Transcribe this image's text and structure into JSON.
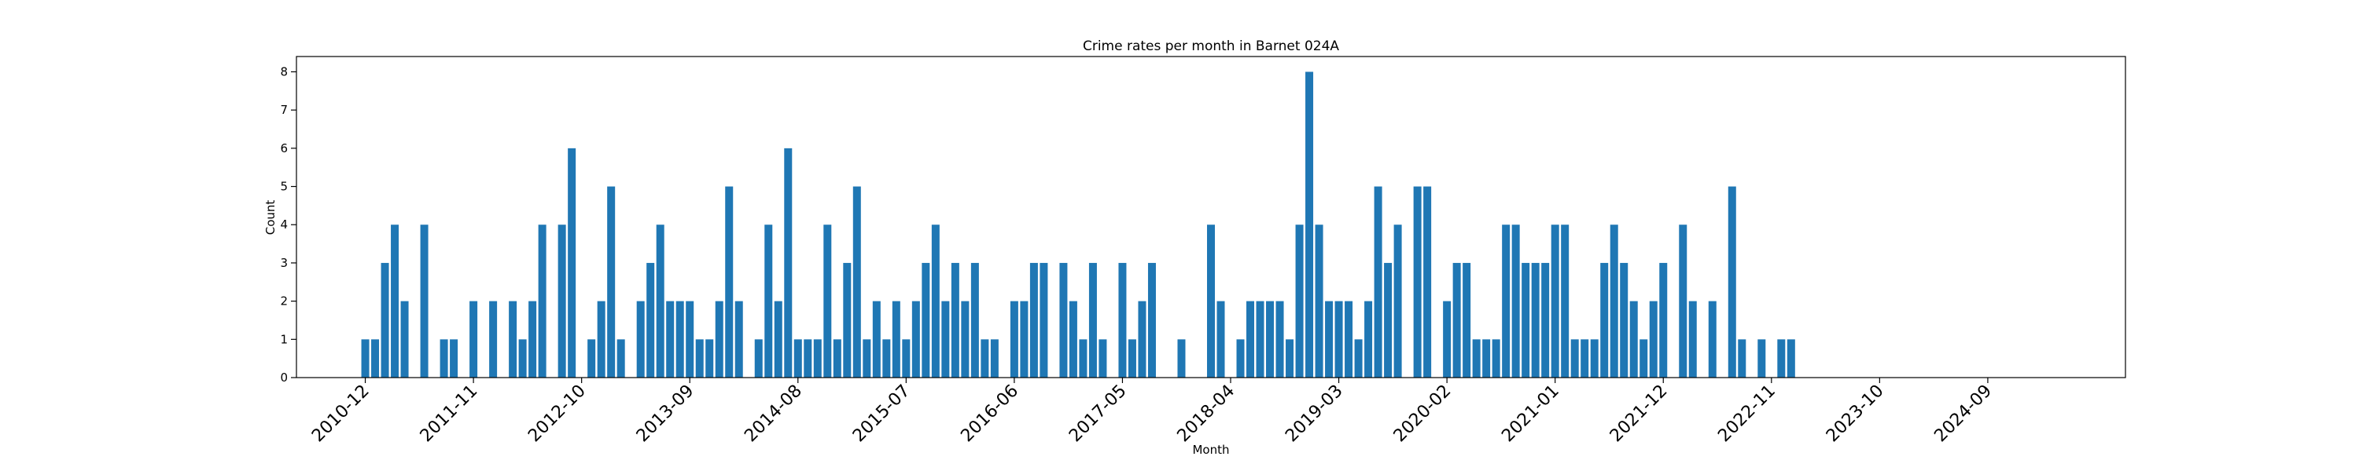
{
  "chart_data": {
    "type": "bar",
    "title": "Crime rates per month in Barnet 024A",
    "xlabel": "Month",
    "ylabel": "Count",
    "ylim": [
      0,
      8.4
    ],
    "yticks": [
      0,
      1,
      2,
      3,
      4,
      5,
      6,
      7,
      8
    ],
    "xlim": [
      "2010-05",
      "2025-11"
    ],
    "xticks": [
      "2010-12",
      "2011-11",
      "2012-10",
      "2013-09",
      "2014-08",
      "2015-07",
      "2016-06",
      "2017-05",
      "2018-04",
      "2019-03",
      "2020-02",
      "2021-01",
      "2021-12",
      "2022-11",
      "2023-10",
      "2024-09"
    ],
    "bar_color": "#1f77b4",
    "grid": false,
    "x": [
      "2010-12",
      "2011-01",
      "2011-02",
      "2011-03",
      "2011-04",
      "2011-06",
      "2011-08",
      "2011-09",
      "2011-11",
      "2012-01",
      "2012-03",
      "2012-04",
      "2012-05",
      "2012-06",
      "2012-08",
      "2012-09",
      "2012-11",
      "2012-12",
      "2013-01",
      "2013-02",
      "2013-04",
      "2013-05",
      "2013-06",
      "2013-07",
      "2013-08",
      "2013-09",
      "2013-10",
      "2013-11",
      "2013-12",
      "2014-01",
      "2014-02",
      "2014-04",
      "2014-05",
      "2014-06",
      "2014-07",
      "2014-08",
      "2014-09",
      "2014-10",
      "2014-11",
      "2014-12",
      "2015-01",
      "2015-02",
      "2015-03",
      "2015-04",
      "2015-05",
      "2015-06",
      "2015-07",
      "2015-08",
      "2015-09",
      "2015-10",
      "2015-11",
      "2015-12",
      "2016-01",
      "2016-02",
      "2016-03",
      "2016-04",
      "2016-06",
      "2016-07",
      "2016-08",
      "2016-09",
      "2016-11",
      "2016-12",
      "2017-01",
      "2017-02",
      "2017-03",
      "2017-05",
      "2017-06",
      "2017-07",
      "2017-08",
      "2017-11",
      "2018-02",
      "2018-03",
      "2018-05",
      "2018-06",
      "2018-07",
      "2018-08",
      "2018-09",
      "2018-10",
      "2018-11",
      "2018-12",
      "2019-01",
      "2019-02",
      "2019-03",
      "2019-04",
      "2019-05",
      "2019-06",
      "2019-07",
      "2019-08",
      "2019-09",
      "2019-11",
      "2019-12",
      "2020-02",
      "2020-03",
      "2020-04",
      "2020-05",
      "2020-06",
      "2020-07",
      "2020-08",
      "2020-09",
      "2020-10",
      "2020-11",
      "2020-12",
      "2021-01",
      "2021-02",
      "2021-03",
      "2021-04",
      "2021-05",
      "2021-06",
      "2021-07",
      "2021-08",
      "2021-09",
      "2021-10",
      "2021-11",
      "2021-12",
      "2022-02",
      "2022-03",
      "2022-05",
      "2022-07",
      "2022-08",
      "2022-10",
      "2022-12",
      "2023-01"
    ],
    "values": [
      1,
      1,
      3,
      4,
      2,
      4,
      1,
      1,
      2,
      2,
      2,
      1,
      2,
      4,
      4,
      6,
      1,
      2,
      5,
      1,
      2,
      3,
      4,
      2,
      2,
      2,
      1,
      1,
      2,
      5,
      2,
      1,
      4,
      2,
      6,
      1,
      1,
      1,
      4,
      1,
      3,
      5,
      1,
      2,
      1,
      2,
      1,
      2,
      3,
      4,
      2,
      3,
      2,
      3,
      1,
      1,
      2,
      2,
      3,
      3,
      3,
      2,
      1,
      3,
      1,
      3,
      1,
      2,
      3,
      1,
      4,
      2,
      1,
      2,
      2,
      2,
      2,
      1,
      4,
      8,
      4,
      2,
      2,
      2,
      1,
      2,
      5,
      3,
      4,
      5,
      5,
      2,
      3,
      3,
      1,
      1,
      1,
      4,
      4,
      3,
      3,
      3,
      4,
      4,
      1,
      1,
      1,
      3,
      4,
      3,
      2,
      1,
      2,
      3,
      4,
      2,
      2,
      5,
      1,
      1,
      1,
      1
    ]
  }
}
